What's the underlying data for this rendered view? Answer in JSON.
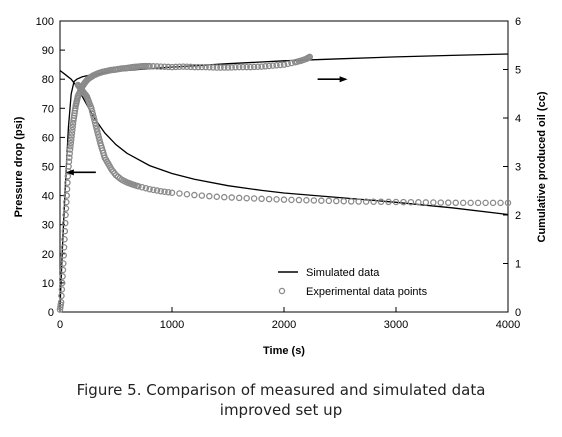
{
  "chart_data": {
    "type": "line",
    "xlabel": "Time (s)",
    "ylabel_left": "Pressure drop (psi)",
    "ylabel_right": "Cumulative produced oil (cc)",
    "xlim": [
      0,
      4000
    ],
    "ylim_left": [
      0,
      100
    ],
    "ylim_right": [
      0,
      6
    ],
    "x_ticks": [
      "0",
      "1000",
      "2000",
      "3000",
      "4000"
    ],
    "y_ticks_left": [
      "0",
      "10",
      "20",
      "30",
      "40",
      "50",
      "60",
      "70",
      "80",
      "90",
      "100"
    ],
    "y_ticks_right": [
      "0",
      "1",
      "2",
      "3",
      "4",
      "5",
      "6"
    ],
    "grid": false,
    "legend": "bottom-right",
    "legend_entries": [
      {
        "label": "Simulated data",
        "marker": "line"
      },
      {
        "label": "Experimental data points",
        "marker": "circle"
      }
    ],
    "series": [
      {
        "name": "Simulated data",
        "axis": "left",
        "style": "line",
        "x": [
          0,
          50,
          100,
          150,
          200,
          250,
          300,
          400,
          500,
          600,
          800,
          1000,
          1200,
          1500,
          1800,
          2000,
          2500,
          3000,
          3500,
          4000
        ],
        "y": [
          83,
          81.5,
          80,
          77.5,
          74,
          70.5,
          67,
          61.5,
          57.5,
          54.5,
          50.3,
          47.6,
          45.6,
          43.4,
          41.8,
          40.9,
          39.3,
          37.7,
          35.8,
          33.5
        ]
      },
      {
        "name": "Simulated data",
        "axis": "right",
        "style": "line",
        "x": [
          0,
          25,
          50,
          75,
          100,
          125,
          150,
          200,
          300,
          500,
          700,
          1000,
          1500,
          2000,
          2500,
          3000,
          3500,
          4000
        ],
        "y": [
          0.1,
          1.5,
          2.7,
          3.8,
          4.5,
          4.75,
          4.8,
          4.85,
          4.9,
          4.96,
          5.0,
          5.05,
          5.12,
          5.18,
          5.22,
          5.26,
          5.29,
          5.32
        ]
      },
      {
        "name": "Experimental data points",
        "axis": "left",
        "style": "markers",
        "x": [
          160,
          180,
          200,
          220,
          240,
          260,
          280,
          300,
          320,
          340,
          360,
          380,
          400,
          430,
          460,
          500,
          550,
          600,
          650,
          700,
          800,
          900,
          1000,
          1200,
          1400,
          1600,
          1800,
          2000,
          2200,
          2400,
          2600,
          2800,
          3000,
          3200,
          3400,
          3600,
          3800,
          4000
        ],
        "y": [
          78,
          77,
          76,
          75,
          74,
          72,
          70,
          67,
          64,
          61,
          58,
          55.5,
          53,
          51,
          49,
          47,
          45.5,
          44.5,
          43.8,
          43.2,
          42.2,
          41.5,
          41,
          40.2,
          39.6,
          39.2,
          38.9,
          38.6,
          38.4,
          38.2,
          38,
          37.9,
          37.8,
          37.7,
          37.6,
          37.5,
          37.5,
          37.5
        ]
      },
      {
        "name": "Experimental data points",
        "axis": "right",
        "style": "markers",
        "x": [
          0,
          10,
          20,
          30,
          40,
          50,
          60,
          70,
          80,
          90,
          100,
          110,
          120,
          130,
          140,
          150,
          160,
          180,
          200,
          220,
          240,
          260,
          280,
          300,
          340,
          380,
          420,
          460,
          500,
          550,
          600,
          650,
          700,
          750,
          800,
          900,
          1000,
          1100,
          1200,
          1300,
          1400,
          1500,
          1600,
          1700,
          1800,
          1900,
          2000,
          2100,
          2150,
          2200,
          2230
        ],
        "y": [
          0.05,
          0.2,
          0.6,
          1.0,
          1.5,
          2.0,
          2.4,
          2.8,
          3.1,
          3.35,
          3.55,
          3.75,
          3.95,
          4.1,
          4.25,
          4.35,
          4.45,
          4.55,
          4.65,
          4.72,
          4.78,
          4.82,
          4.85,
          4.88,
          4.92,
          4.95,
          4.97,
          4.99,
          5.0,
          5.02,
          5.03,
          5.05,
          5.06,
          5.07,
          5.07,
          5.06,
          5.05,
          5.06,
          5.05,
          5.05,
          5.04,
          5.04,
          5.05,
          5.05,
          5.06,
          5.08,
          5.1,
          5.15,
          5.18,
          5.22,
          5.26
        ]
      }
    ],
    "annotations": [
      {
        "type": "arrow",
        "direction": "left",
        "points_to": "left axis",
        "at": [
          320,
          48
        ]
      },
      {
        "type": "arrow",
        "direction": "right",
        "points_to": "right axis",
        "at": [
          2300,
          80
        ]
      }
    ]
  },
  "caption": {
    "line1": "Figure 5. Comparison of measured and simulated data",
    "line2": "improved set up"
  }
}
